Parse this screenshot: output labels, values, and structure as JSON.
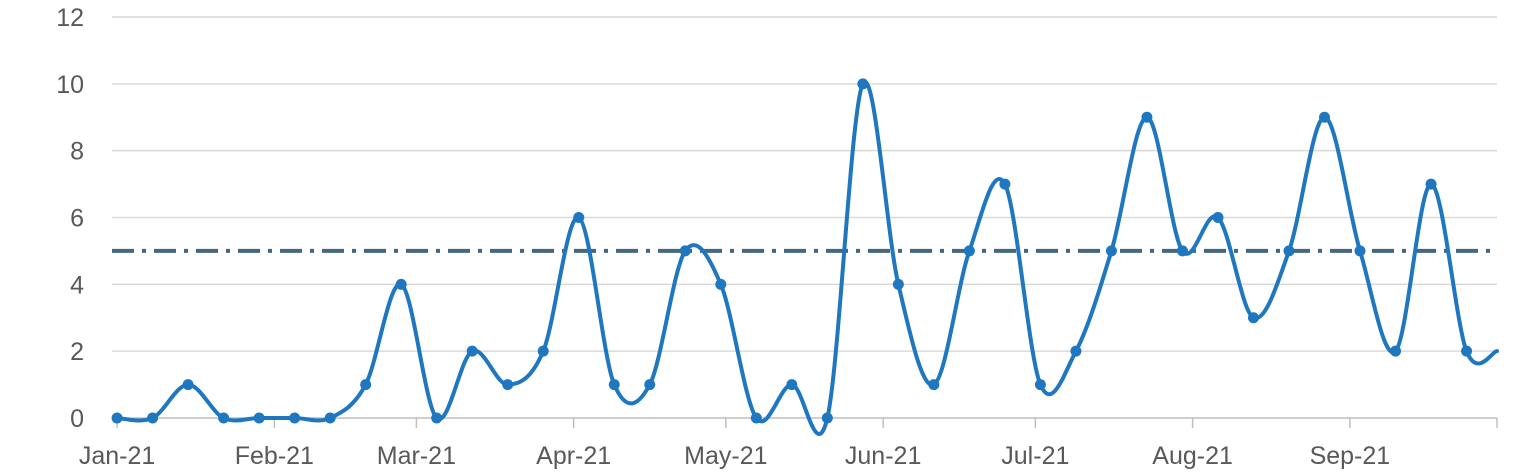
{
  "chart_data": {
    "type": "line",
    "title": "",
    "xlabel": "",
    "ylabel": "",
    "x_tick_labels": [
      "Jan-21",
      "Feb-21",
      "Mar-21",
      "Apr-21",
      "May-21",
      "Jun-21",
      "Jul-21",
      "Aug-21",
      "Sep-21"
    ],
    "x_tick_dates": [
      "2021-01-01",
      "2021-02-01",
      "2021-03-01",
      "2021-04-01",
      "2021-05-01",
      "2021-06-01",
      "2021-07-01",
      "2021-08-01",
      "2021-09-01"
    ],
    "x_range": [
      "2020-12-31",
      "2021-09-30"
    ],
    "ylim": [
      0,
      12
    ],
    "y_ticks": [
      0,
      2,
      4,
      6,
      8,
      10,
      12
    ],
    "grid": "horizontal",
    "legend": "none",
    "series": [
      {
        "color": "#1f77c0",
        "smooth": true,
        "markers": true,
        "points": [
          {
            "x": "2021-01-01",
            "y": 0
          },
          {
            "x": "2021-01-08",
            "y": 0
          },
          {
            "x": "2021-01-15",
            "y": 1
          },
          {
            "x": "2021-01-22",
            "y": 0
          },
          {
            "x": "2021-01-29",
            "y": 0
          },
          {
            "x": "2021-02-05",
            "y": 0
          },
          {
            "x": "2021-02-12",
            "y": 0
          },
          {
            "x": "2021-02-19",
            "y": 1
          },
          {
            "x": "2021-02-26",
            "y": 4
          },
          {
            "x": "2021-03-05",
            "y": 0
          },
          {
            "x": "2021-03-12",
            "y": 2
          },
          {
            "x": "2021-03-19",
            "y": 1
          },
          {
            "x": "2021-03-26",
            "y": 2
          },
          {
            "x": "2021-04-02",
            "y": 6
          },
          {
            "x": "2021-04-09",
            "y": 1
          },
          {
            "x": "2021-04-16",
            "y": 1
          },
          {
            "x": "2021-04-23",
            "y": 5
          },
          {
            "x": "2021-04-30",
            "y": 4
          },
          {
            "x": "2021-05-07",
            "y": 0
          },
          {
            "x": "2021-05-14",
            "y": 1
          },
          {
            "x": "2021-05-21",
            "y": 0
          },
          {
            "x": "2021-05-28",
            "y": 10
          },
          {
            "x": "2021-06-04",
            "y": 4
          },
          {
            "x": "2021-06-11",
            "y": 1
          },
          {
            "x": "2021-06-18",
            "y": 5
          },
          {
            "x": "2021-06-25",
            "y": 7
          },
          {
            "x": "2021-07-02",
            "y": 1
          },
          {
            "x": "2021-07-09",
            "y": 2
          },
          {
            "x": "2021-07-16",
            "y": 5
          },
          {
            "x": "2021-07-23",
            "y": 9
          },
          {
            "x": "2021-07-30",
            "y": 5
          },
          {
            "x": "2021-08-06",
            "y": 6
          },
          {
            "x": "2021-08-13",
            "y": 3
          },
          {
            "x": "2021-08-20",
            "y": 5
          },
          {
            "x": "2021-08-27",
            "y": 9
          },
          {
            "x": "2021-09-03",
            "y": 5
          },
          {
            "x": "2021-09-10",
            "y": 2
          },
          {
            "x": "2021-09-17",
            "y": 7
          },
          {
            "x": "2021-09-24",
            "y": 2
          }
        ],
        "trailing_segment": {
          "x": "2021-09-30",
          "y": 2
        }
      }
    ],
    "reference_lines": [
      {
        "y": 5,
        "style": "dash-dot",
        "color": "#44687f"
      }
    ]
  }
}
